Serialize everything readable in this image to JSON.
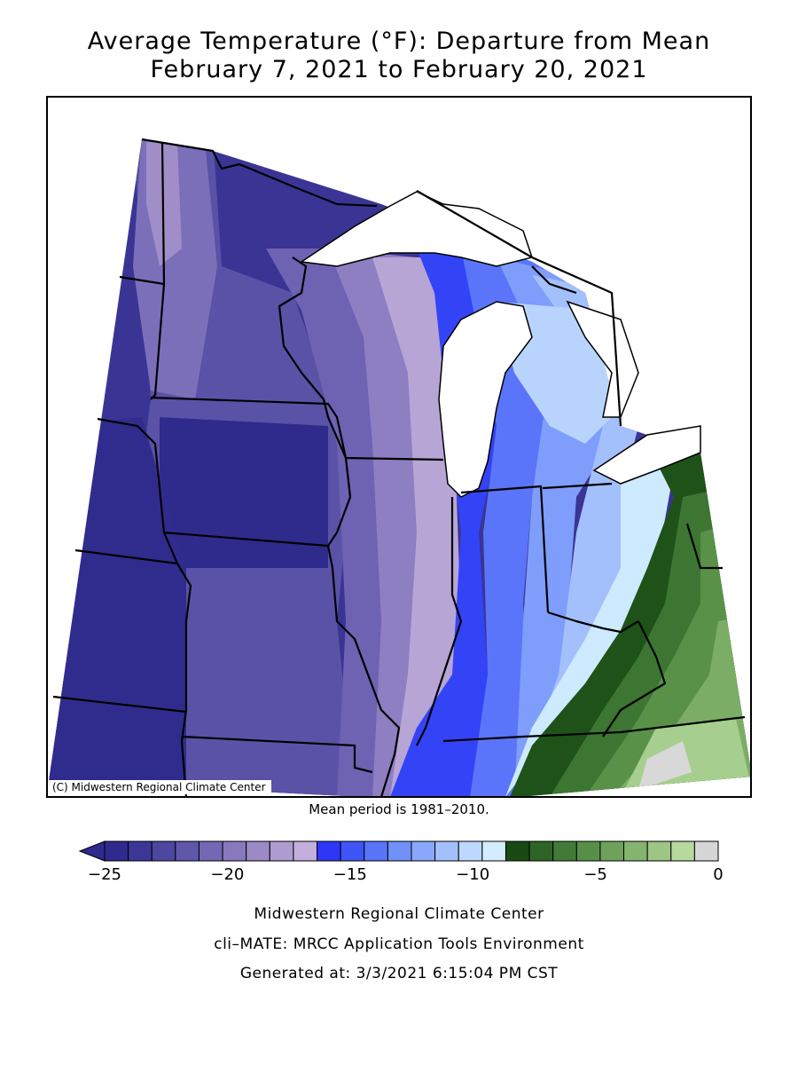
{
  "title": {
    "line1": "Average Temperature (°F): Departure from Mean",
    "line2": "February 7, 2021 to February 20, 2021"
  },
  "map": {
    "copyright": "(C) Midwestern Regional Climate Center",
    "mean_period": "Mean period is 1981–2010."
  },
  "legend": {
    "colors": [
      "#2e2a8e",
      "#3c3797",
      "#4d47a0",
      "#5f57aa",
      "#7468b4",
      "#8878be",
      "#9b8ac6",
      "#ad9ccf",
      "#c3aedc",
      "#2c37f7",
      "#3f55f8",
      "#5874f9",
      "#7190fa",
      "#8aa8fb",
      "#a3c0fc",
      "#bcd8fd",
      "#d3edfe",
      "#184a14",
      "#2e6526",
      "#427b37",
      "#588f48",
      "#6ea25a",
      "#85b46e",
      "#9dc584",
      "#b6d99e",
      "#d6d6d6"
    ],
    "tick_labels": [
      "−25",
      "−20",
      "−15",
      "−10",
      "−5",
      "0"
    ],
    "tick_values": [
      -25,
      -20,
      -15,
      -10,
      -5,
      0
    ]
  },
  "footer": {
    "line1": "Midwestern Regional Climate Center",
    "line2": "cli–MATE: MRCC Application Tools Environment",
    "line3": "Generated at: 3/3/2021 6:15:04 PM CST"
  }
}
